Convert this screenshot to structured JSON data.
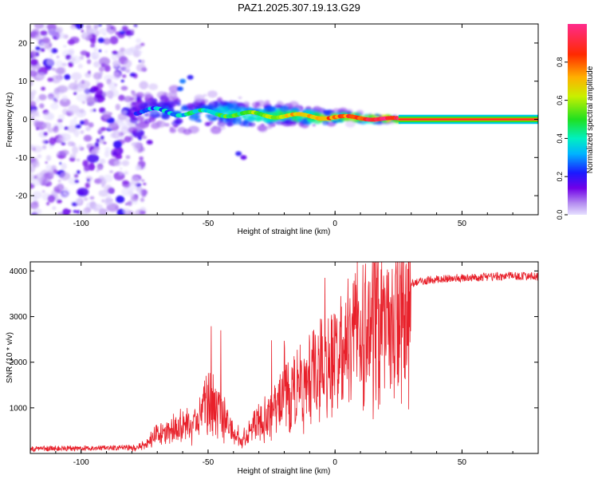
{
  "chart_data": [
    {
      "type": "heatmap",
      "title": "PAZ1.2025.307.19.13.G29",
      "xlabel": "Height of straight line (km)",
      "ylabel": "Frequency (Hz)",
      "xlim": [
        -120,
        80
      ],
      "ylim": [
        -25,
        25
      ],
      "xticks": [
        -100,
        -50,
        0,
        50
      ],
      "yticks": [
        -20,
        -10,
        0,
        10,
        20
      ],
      "colorbar": {
        "label": "Normalized spectral amplitude",
        "range": [
          0.0,
          1.0
        ],
        "ticks": [
          0.0,
          0.2,
          0.4,
          0.6,
          0.8
        ],
        "colormap": "rainbow-purple-to-magenta"
      },
      "description_of_data": {
        "noise_region_x": [
          -120,
          -78
        ],
        "transition_region_x": [
          -80,
          25
        ],
        "stable_tone_region_x": [
          25,
          80
        ],
        "tone_frequency_hz": 0
      }
    },
    {
      "type": "line",
      "xlabel": "Height of straight line (km)",
      "ylabel": "SNR (10 * v/v)",
      "xlim": [
        -120,
        80
      ],
      "ylim": [
        0,
        4200
      ],
      "xticks": [
        -100,
        -50,
        0,
        50
      ],
      "yticks": [
        1000,
        2000,
        3000,
        4000
      ],
      "series_color": "#e8202a",
      "envelope": {
        "x": [
          -120,
          -80,
          -75,
          -70,
          -65,
          -60,
          -55,
          -50,
          -45,
          -40,
          -35,
          -30,
          -25,
          -20,
          -15,
          -10,
          -5,
          0,
          5,
          10,
          15,
          20,
          25,
          30,
          35,
          40,
          50,
          60,
          70,
          80
        ],
        "y": [
          100,
          130,
          200,
          500,
          550,
          750,
          700,
          1400,
          1200,
          500,
          420,
          900,
          1100,
          1700,
          1650,
          2000,
          2300,
          2500,
          2800,
          3100,
          3400,
          3550,
          3650,
          3720,
          3780,
          3820,
          3850,
          3870,
          3890,
          3880
        ]
      },
      "spikes": [
        {
          "x": -48.8,
          "y": 2790
        },
        {
          "x": -45,
          "y": 2700
        },
        {
          "x": -25,
          "y": 2480
        },
        {
          "x": -20,
          "y": 2470
        },
        {
          "x": -10,
          "y": 2440
        },
        {
          "x": -4,
          "y": 3850
        },
        {
          "x": 15.5,
          "y": 4180
        },
        {
          "x": 8,
          "y": 3950
        }
      ]
    }
  ]
}
